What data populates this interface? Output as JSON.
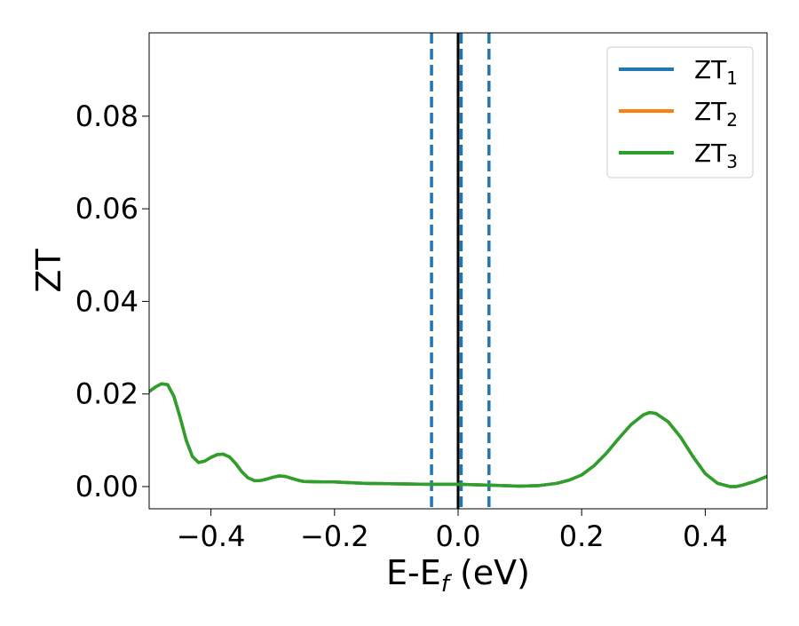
{
  "chart_data": {
    "type": "line",
    "title": "",
    "xlabel": "E-E",
    "xlabel_sub": "f",
    "xlabel_unit": " (eV)",
    "ylabel": "ZT",
    "xlim": [
      -0.5,
      0.5
    ],
    "ylim": [
      -0.0048,
      0.098
    ],
    "x_ticks": [
      -0.4,
      -0.2,
      0.0,
      0.2,
      0.4
    ],
    "x_tick_labels": [
      "−0.4",
      "−0.2",
      "0.0",
      "0.2",
      "0.4"
    ],
    "y_ticks": [
      0.0,
      0.02,
      0.04,
      0.06,
      0.08
    ],
    "y_tick_labels": [
      "0.00",
      "0.02",
      "0.04",
      "0.06",
      "0.08"
    ],
    "grid": false,
    "legend_position": "top-right",
    "vertical_lines": [
      {
        "x": -0.043,
        "style": "dashed",
        "color": "#1f77b4"
      },
      {
        "x": 0.0,
        "style": "solid",
        "color": "#000000"
      },
      {
        "x": 0.005,
        "style": "dashed",
        "color": "#1f77b4"
      },
      {
        "x": 0.05,
        "style": "dashed",
        "color": "#1f77b4"
      }
    ],
    "x": [
      -0.5,
      -0.49,
      -0.48,
      -0.47,
      -0.46,
      -0.45,
      -0.44,
      -0.43,
      -0.42,
      -0.41,
      -0.4,
      -0.39,
      -0.38,
      -0.37,
      -0.36,
      -0.35,
      -0.34,
      -0.33,
      -0.32,
      -0.31,
      -0.3,
      -0.29,
      -0.28,
      -0.27,
      -0.26,
      -0.25,
      -0.22,
      -0.2,
      -0.15,
      -0.1,
      -0.05,
      0.0,
      0.05,
      0.1,
      0.13,
      0.16,
      0.18,
      0.2,
      0.22,
      0.24,
      0.26,
      0.28,
      0.3,
      0.31,
      0.32,
      0.34,
      0.36,
      0.38,
      0.4,
      0.42,
      0.44,
      0.45,
      0.46,
      0.48,
      0.5
    ],
    "series": [
      {
        "name": "ZT",
        "sub": "1",
        "color": "#1f77b4",
        "values": [
          0.0205,
          0.0215,
          0.0222,
          0.022,
          0.0195,
          0.015,
          0.01,
          0.0065,
          0.0052,
          0.0055,
          0.0063,
          0.0069,
          0.007,
          0.0064,
          0.005,
          0.0032,
          0.0019,
          0.0013,
          0.0013,
          0.0016,
          0.002,
          0.0023,
          0.0022,
          0.0018,
          0.0014,
          0.0011,
          0.001,
          0.001,
          0.0007,
          0.0006,
          0.0005,
          0.0005,
          0.0003,
          0.0001,
          0.0002,
          0.0007,
          0.0014,
          0.0025,
          0.0045,
          0.0072,
          0.0104,
          0.0134,
          0.0155,
          0.016,
          0.0158,
          0.014,
          0.0107,
          0.0065,
          0.0028,
          0.0007,
          0.0,
          0.0,
          0.0003,
          0.0011,
          0.0022
        ]
      },
      {
        "name": "ZT",
        "sub": "2",
        "color": "#ff7f0e",
        "values": [
          0.0205,
          0.0215,
          0.0222,
          0.022,
          0.0195,
          0.015,
          0.01,
          0.0065,
          0.0052,
          0.0055,
          0.0063,
          0.0069,
          0.007,
          0.0064,
          0.005,
          0.0032,
          0.0019,
          0.0013,
          0.0013,
          0.0016,
          0.002,
          0.0023,
          0.0022,
          0.0018,
          0.0014,
          0.0011,
          0.001,
          0.001,
          0.0007,
          0.0006,
          0.0005,
          0.0005,
          0.0003,
          0.0001,
          0.0002,
          0.0007,
          0.0014,
          0.0025,
          0.0045,
          0.0072,
          0.0104,
          0.0134,
          0.0155,
          0.016,
          0.0158,
          0.014,
          0.0107,
          0.0065,
          0.0028,
          0.0007,
          0.0,
          0.0,
          0.0003,
          0.0011,
          0.0022
        ]
      },
      {
        "name": "ZT",
        "sub": "3",
        "color": "#2ca02c",
        "values": [
          0.0205,
          0.0215,
          0.0222,
          0.022,
          0.0195,
          0.015,
          0.01,
          0.0065,
          0.0052,
          0.0055,
          0.0063,
          0.0069,
          0.007,
          0.0064,
          0.005,
          0.0032,
          0.0019,
          0.0013,
          0.0013,
          0.0016,
          0.002,
          0.0023,
          0.0022,
          0.0018,
          0.0014,
          0.0011,
          0.001,
          0.001,
          0.0007,
          0.0006,
          0.0005,
          0.0005,
          0.0003,
          0.0001,
          0.0002,
          0.0007,
          0.0014,
          0.0025,
          0.0045,
          0.0072,
          0.0104,
          0.0134,
          0.0155,
          0.016,
          0.0158,
          0.014,
          0.0107,
          0.0065,
          0.0028,
          0.0007,
          0.0,
          0.0,
          0.0003,
          0.0011,
          0.0022
        ]
      }
    ]
  }
}
